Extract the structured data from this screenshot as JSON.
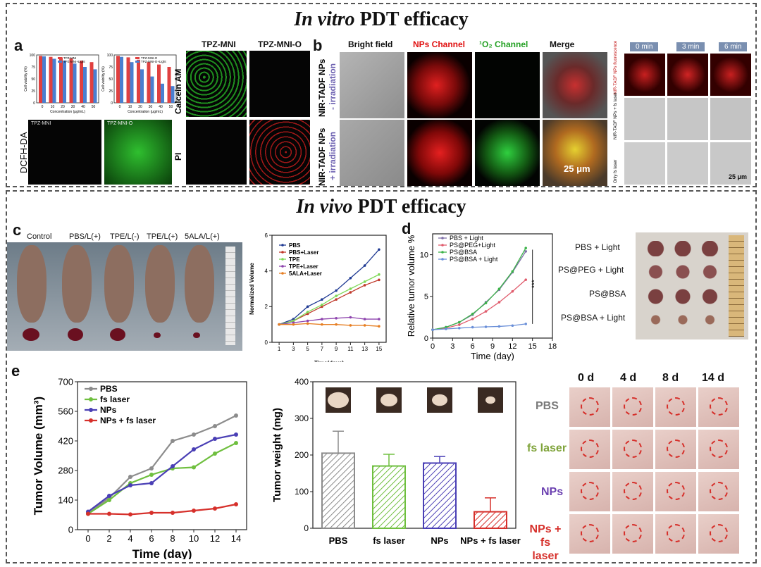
{
  "vitro": {
    "title_italic": "In vitro",
    "title_rest": " PDT efficacy",
    "panel_a": {
      "label": "a",
      "chart1_legend": [
        "TPZ-MNI",
        "TPZ-MNI+Light"
      ],
      "chart2_legend": [
        "TPZ-MNI-O",
        "TPZ-MNI-O+Light"
      ],
      "ylabel": "Cell viability (%)",
      "xlabel": "Concentration (μg/mL)",
      "x_ticks": [
        "0",
        "10",
        "20",
        "30",
        "40",
        "50"
      ],
      "y_ticks": [
        "0",
        "25",
        "50",
        "75",
        "100"
      ],
      "dcfh_label": "DCFH-DA",
      "img_tpzmni": "TPZ-MNI",
      "img_tpzmnio": "TPZ-MNI-O",
      "col_tpzmni": "TPZ-MNI",
      "col_tpzmnio": "TPZ-MNI-O",
      "row_calcein": "Calcein AM",
      "row_pi": "PI"
    },
    "panel_b": {
      "label": "b",
      "cols": [
        "Bright field",
        "NPs Channel",
        "¹O₂ Channel",
        "Merge"
      ],
      "row1": [
        "NIR-TADF NPs",
        "- irradiation"
      ],
      "row2": [
        "NIR-TADF NPs",
        "+ irradiation"
      ],
      "scale": "25 μm",
      "time_cols": [
        "0 min",
        "3 min",
        "6 min"
      ],
      "side_rows": [
        "NIR-TADF NPs fluorescence",
        "NIR-TADF NPs + fs laser",
        "Only fs laser"
      ],
      "scale2": "25 μm"
    }
  },
  "vivo": {
    "title_italic": "In vivo",
    "title_rest": " PDT efficacy",
    "panel_c": {
      "label": "c",
      "groups": [
        "Control",
        "PBS/L(+)",
        "TPE/L(-)",
        "TPE/L(+)",
        "5ALA/L(+)"
      ],
      "chart": {
        "type": "line",
        "xlabel": "Time(days)",
        "ylabel": "Normalized Volume",
        "x": [
          1,
          3,
          5,
          7,
          9,
          11,
          13,
          15
        ],
        "ylim": [
          0,
          6
        ],
        "y_ticks": [
          "0",
          "2",
          "4",
          "6"
        ],
        "series": [
          {
            "name": "PBS",
            "color": "#1f3a93",
            "values": [
              1,
              1.3,
              2.0,
              2.4,
              2.9,
              3.6,
              4.3,
              5.2
            ]
          },
          {
            "name": "PBS+Laser",
            "color": "#c0392b",
            "values": [
              1,
              1.2,
              1.6,
              2.0,
              2.4,
              2.8,
              3.2,
              3.5
            ]
          },
          {
            "name": "TPE",
            "color": "#7ed957",
            "values": [
              1,
              1.2,
              1.7,
              2.1,
              2.6,
              3.0,
              3.4,
              3.8
            ]
          },
          {
            "name": "TPE+Laser",
            "color": "#8e44ad",
            "values": [
              1,
              1.1,
              1.2,
              1.3,
              1.35,
              1.4,
              1.3,
              1.3
            ]
          },
          {
            "name": "5ALA+Laser",
            "color": "#e67e22",
            "values": [
              1,
              1.0,
              1.05,
              1.0,
              1.0,
              0.95,
              0.95,
              0.9
            ]
          }
        ]
      }
    },
    "panel_d": {
      "label": "d",
      "chart": {
        "type": "line",
        "xlabel": "Time (day)",
        "ylabel": "Relative tumor volume %",
        "x": [
          0,
          2,
          4,
          6,
          8,
          10,
          12,
          14
        ],
        "xlim": [
          0,
          18
        ],
        "ylim": [
          0,
          12.5
        ],
        "x_ticks": [
          "0",
          "3",
          "6",
          "9",
          "12",
          "15",
          "18"
        ],
        "y_ticks": [
          "0",
          "5",
          "10"
        ],
        "sig": "***",
        "series": [
          {
            "name": "PBS + Light",
            "color": "#7f6fa8",
            "values": [
              1,
              1.3,
              1.9,
              2.8,
              4.3,
              5.8,
              7.9,
              10.4
            ]
          },
          {
            "name": "PS@PEG+Light",
            "color": "#e05c6d",
            "values": [
              1,
              1.2,
              1.6,
              2.3,
              3.2,
              4.3,
              5.6,
              7.0
            ]
          },
          {
            "name": "PS@BSA",
            "color": "#3db34a",
            "values": [
              1,
              1.3,
              1.9,
              2.9,
              4.2,
              5.9,
              8.0,
              10.8
            ]
          },
          {
            "name": "PS@BSA + Light",
            "color": "#6a8fd8",
            "values": [
              1,
              1.1,
              1.2,
              1.3,
              1.35,
              1.4,
              1.5,
              1.7
            ]
          }
        ]
      },
      "photo_labels": [
        "PBS + Light",
        "PS@PEG + Light",
        "PS@BSA",
        "PS@BSA + Light"
      ]
    },
    "panel_e": {
      "label": "e",
      "volume_chart": {
        "type": "line",
        "xlabel": "Time (day)",
        "ylabel": "Tumor Volume (mm³)",
        "x": [
          0,
          2,
          4,
          6,
          8,
          10,
          12,
          14
        ],
        "ylim": [
          0,
          700
        ],
        "y_ticks": [
          "0",
          "140",
          "280",
          "420",
          "560",
          "700"
        ],
        "x_ticks": [
          "0",
          "2",
          "4",
          "6",
          "8",
          "10",
          "12",
          "14"
        ],
        "series": [
          {
            "name": "PBS",
            "color": "#8c8c8c",
            "values": [
              80,
              150,
              250,
              290,
              420,
              450,
              490,
              540
            ]
          },
          {
            "name": "fs laser",
            "color": "#6fbf3f",
            "values": [
              75,
              140,
              220,
              260,
              290,
              295,
              360,
              410
            ]
          },
          {
            "name": "NPs",
            "color": "#4a3fb5",
            "values": [
              85,
              160,
              210,
              220,
              300,
              380,
              430,
              450
            ]
          },
          {
            "name": "NPs + fs laser",
            "color": "#d6302b",
            "values": [
              75,
              75,
              72,
              80,
              80,
              90,
              100,
              120
            ]
          }
        ]
      },
      "weight_chart": {
        "type": "bar",
        "ylabel": "Tumor weight (mg)",
        "categories": [
          "PBS",
          "fs laser",
          "NPs",
          "NPs + fs laser"
        ],
        "values": [
          205,
          170,
          178,
          45
        ],
        "errors": [
          60,
          32,
          18,
          38
        ],
        "colors": [
          "#8c8c8c",
          "#6fbf3f",
          "#4a3fb5",
          "#d6302b"
        ],
        "ylim": [
          0,
          400
        ],
        "y_ticks": [
          "0",
          "100",
          "200",
          "300",
          "400"
        ]
      },
      "days": [
        "0 d",
        "4 d",
        "8 d",
        "14 d"
      ],
      "rows": [
        "PBS",
        "fs laser",
        "NPs",
        "NPs + fs laser"
      ],
      "row_colors": [
        "#7a7a7a",
        "#7fa33a",
        "#6a3fb0",
        "#d6302b"
      ]
    }
  }
}
